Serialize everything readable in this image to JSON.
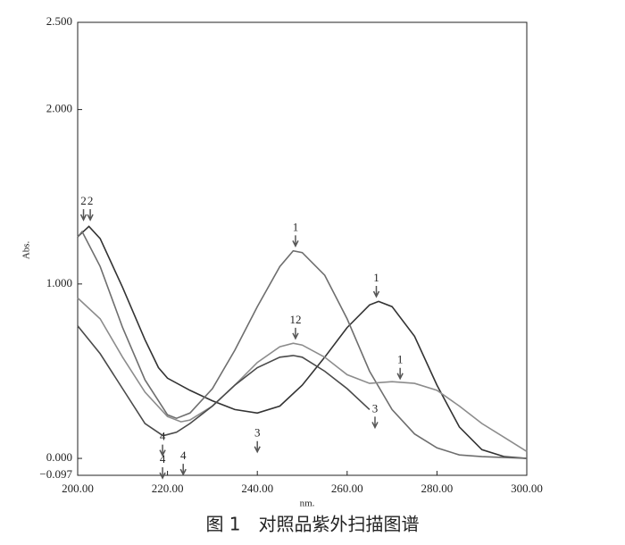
{
  "chart_data": {
    "type": "line",
    "xlabel": "nm.",
    "ylabel": "Abs.",
    "caption": "图 1　对照品紫外扫描图谱",
    "xlim": [
      200,
      300
    ],
    "xticks": [
      {
        "value": 200,
        "label": "200.00"
      },
      {
        "value": 220,
        "label": "220.00"
      },
      {
        "value": 240,
        "label": "240.00"
      },
      {
        "value": 260,
        "label": "260.00"
      },
      {
        "value": 280,
        "label": "280.00"
      },
      {
        "value": 300,
        "label": "300.00"
      }
    ],
    "ylim": [
      -0.097,
      2.5
    ],
    "yticks": [
      {
        "value": -0.097,
        "label": "−0.097"
      },
      {
        "value": 0,
        "label": "0.000"
      },
      {
        "value": 1,
        "label": "1.000"
      },
      {
        "value": 2,
        "label": "2.000"
      },
      {
        "value": 2.5,
        "label": "2.500"
      }
    ],
    "grid": false,
    "series": [
      {
        "color": "#333333",
        "x": [
          200,
          202.5,
          205,
          210,
          215,
          218,
          220,
          225,
          230,
          235,
          240,
          245,
          250,
          255,
          260,
          265,
          267,
          270,
          275,
          280,
          285,
          290,
          295,
          300
        ],
        "values": [
          1.27,
          1.33,
          1.26,
          0.98,
          0.68,
          0.52,
          0.46,
          0.39,
          0.33,
          0.28,
          0.26,
          0.3,
          0.42,
          0.58,
          0.75,
          0.88,
          0.9,
          0.87,
          0.7,
          0.42,
          0.18,
          0.05,
          0.01,
          0.0
        ]
      },
      {
        "color": "#6e6e6e",
        "x": [
          200,
          201,
          205,
          210,
          215,
          220,
          222,
          225,
          230,
          235,
          240,
          245,
          248,
          250,
          255,
          260,
          265,
          270,
          275,
          280,
          285,
          290,
          300
        ],
        "values": [
          1.27,
          1.3,
          1.1,
          0.75,
          0.45,
          0.25,
          0.23,
          0.26,
          0.4,
          0.62,
          0.87,
          1.1,
          1.19,
          1.18,
          1.05,
          0.8,
          0.5,
          0.28,
          0.14,
          0.06,
          0.02,
          0.01,
          0.0
        ]
      },
      {
        "color": "#8c8c8c",
        "x": [
          200,
          205,
          210,
          215,
          220,
          223,
          225,
          230,
          235,
          240,
          245,
          248,
          250,
          255,
          260,
          265,
          270,
          275,
          280,
          285,
          290,
          295,
          300
        ],
        "values": [
          0.92,
          0.8,
          0.58,
          0.38,
          0.24,
          0.21,
          0.22,
          0.3,
          0.42,
          0.55,
          0.64,
          0.66,
          0.65,
          0.58,
          0.48,
          0.43,
          0.44,
          0.43,
          0.39,
          0.3,
          0.2,
          0.12,
          0.04
        ]
      },
      {
        "color": "#4a4a4a",
        "x": [
          200,
          205,
          210,
          215,
          219,
          222,
          225,
          230,
          235,
          240,
          245,
          248,
          250,
          255,
          260,
          265
        ],
        "values": [
          0.76,
          0.6,
          0.4,
          0.2,
          0.13,
          0.15,
          0.2,
          0.3,
          0.42,
          0.52,
          0.58,
          0.59,
          0.58,
          0.5,
          0.4,
          0.28
        ]
      }
    ],
    "annotations": [
      {
        "text": "2",
        "x": 201.3,
        "y": 1.47
      },
      {
        "text": "2",
        "x": 202.8,
        "y": 1.47
      },
      {
        "text": "1",
        "x": 248.5,
        "y": 1.32
      },
      {
        "text": "1",
        "x": 266.5,
        "y": 1.03
      },
      {
        "text": "12",
        "x": 248.5,
        "y": 0.79
      },
      {
        "text": "1",
        "x": 271.8,
        "y": 0.56
      },
      {
        "text": "3",
        "x": 240,
        "y": 0.14
      },
      {
        "text": "3",
        "x": 266.2,
        "y": 0.28
      },
      {
        "text": "4",
        "x": 218.9,
        "y": 0.12
      },
      {
        "text": "4",
        "x": 218.9,
        "y": -0.01
      },
      {
        "text": "4",
        "x": 223.5,
        "y": 0.01
      }
    ]
  }
}
